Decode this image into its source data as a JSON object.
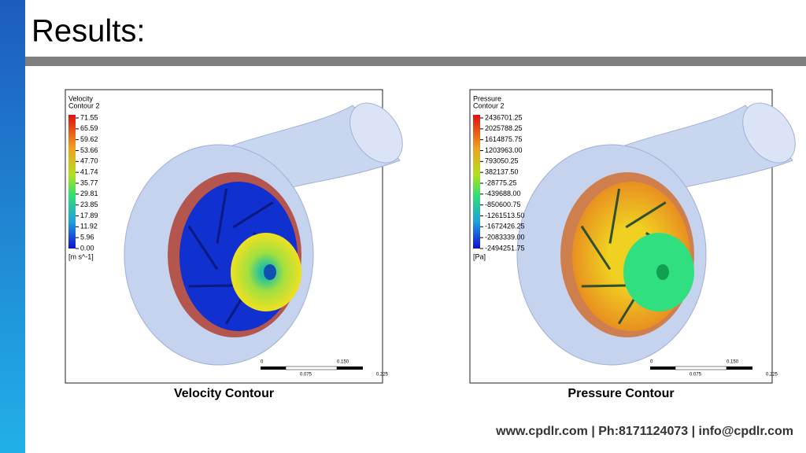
{
  "title": "Results:",
  "panels": [
    {
      "legend": {
        "title": "Velocity",
        "subtitle": "Contour 2",
        "labels": [
          "71.55",
          "65.59",
          "59.62",
          "53.66",
          "47.70",
          "41.74",
          "35.77",
          "29.81",
          "23.85",
          "17.89",
          "11.92",
          "5.96",
          "0.00"
        ],
        "unit": "[m s^-1]"
      },
      "scale": {
        "top": [
          "0",
          "0.150"
        ],
        "bottom": [
          "0.075",
          "0.225"
        ]
      },
      "caption": "Velocity Contour"
    },
    {
      "legend": {
        "title": "Pressure",
        "subtitle": "Contour 2",
        "labels": [
          "2436701.25",
          "2025788.25",
          "1614875.75",
          "1203963.00",
          "793050.25",
          "382137.50",
          "-28775.25",
          "-439688.00",
          "-850600.75",
          "-1261513.50",
          "-1672426.25",
          "-2083339.00",
          "-2494251.75"
        ],
        "unit": "[Pa]"
      },
      "scale": {
        "top": [
          "0",
          "0.150"
        ],
        "bottom": [
          "0.075",
          "0.225"
        ]
      },
      "caption": "Pressure Contour"
    }
  ],
  "footer": "www.cpdlr.com | Ph:8171124073 | info@cpdlr.com"
}
